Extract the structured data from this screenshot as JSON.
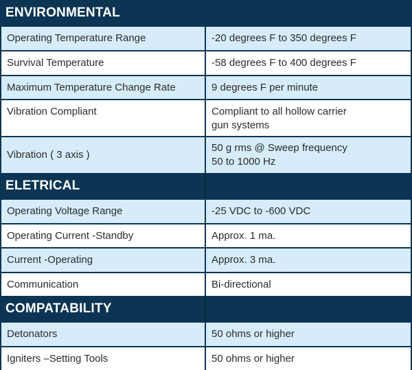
{
  "sections": [
    {
      "title": "ENVIRONMENTAL",
      "rows": [
        {
          "label": "Operating Temperature Range",
          "value": "-20 degrees F to 350 degrees F"
        },
        {
          "label": "Survival Temperature",
          "value": "-58 degrees F to 400 degrees F"
        },
        {
          "label": "Maximum Temperature Change Rate",
          "value": "9 degrees F per minute"
        },
        {
          "label": "Vibration Compliant",
          "value": "Compliant to all hollow carrier\ngun systems"
        },
        {
          "label": "Vibration ( 3 axis )",
          "value": "50 g rms @ Sweep frequency\n50 to 1000 Hz"
        }
      ]
    },
    {
      "title": "ELETRICAL",
      "rows": [
        {
          "label": "Operating Voltage Range",
          "value": "-25 VDC to -600 VDC"
        },
        {
          "label": "Operating Current -Standby",
          "value": "Approx. 1 ma."
        },
        {
          "label": "Current -Operating",
          "value": "Approx. 3 ma."
        },
        {
          "label": "Communication",
          "value": "Bi-directional"
        }
      ]
    },
    {
      "title": "COMPATABILITY",
      "rows": [
        {
          "label": "Detonators",
          "value": "50 ohms or higher"
        },
        {
          "label": "Igniters –Setting Tools",
          "value": "50 ohms or higher"
        }
      ]
    }
  ],
  "colors": {
    "header_bg": "#0c3553",
    "row_light": "#d6ecfa",
    "row_white": "#ffffff",
    "text": "#2b2b2b"
  }
}
